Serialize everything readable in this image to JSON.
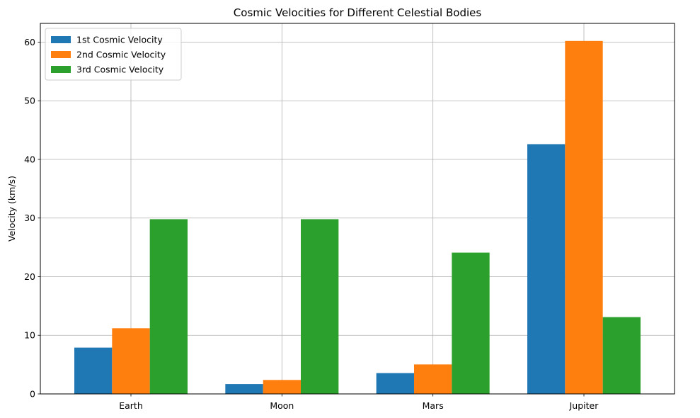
{
  "chart_data": {
    "type": "bar",
    "title": "Cosmic Velocities for Different Celestial Bodies",
    "xlabel": "",
    "ylabel": "Velocity (km/s)",
    "categories": [
      "Earth",
      "Moon",
      "Mars",
      "Jupiter"
    ],
    "series": [
      {
        "name": "1st Cosmic Velocity",
        "color": "#1f77b4",
        "values": [
          7.9,
          1.68,
          3.55,
          42.6
        ]
      },
      {
        "name": "2nd Cosmic Velocity",
        "color": "#ff7f0e",
        "values": [
          11.2,
          2.38,
          5.03,
          60.2
        ]
      },
      {
        "name": "3rd Cosmic Velocity",
        "color": "#2ca02c",
        "values": [
          29.8,
          29.8,
          24.1,
          13.1
        ]
      }
    ],
    "ylim": [
      0,
      63.2
    ],
    "yticks": [
      0,
      10,
      20,
      30,
      40,
      50,
      60
    ],
    "grid": true,
    "legend_position": "upper left"
  }
}
